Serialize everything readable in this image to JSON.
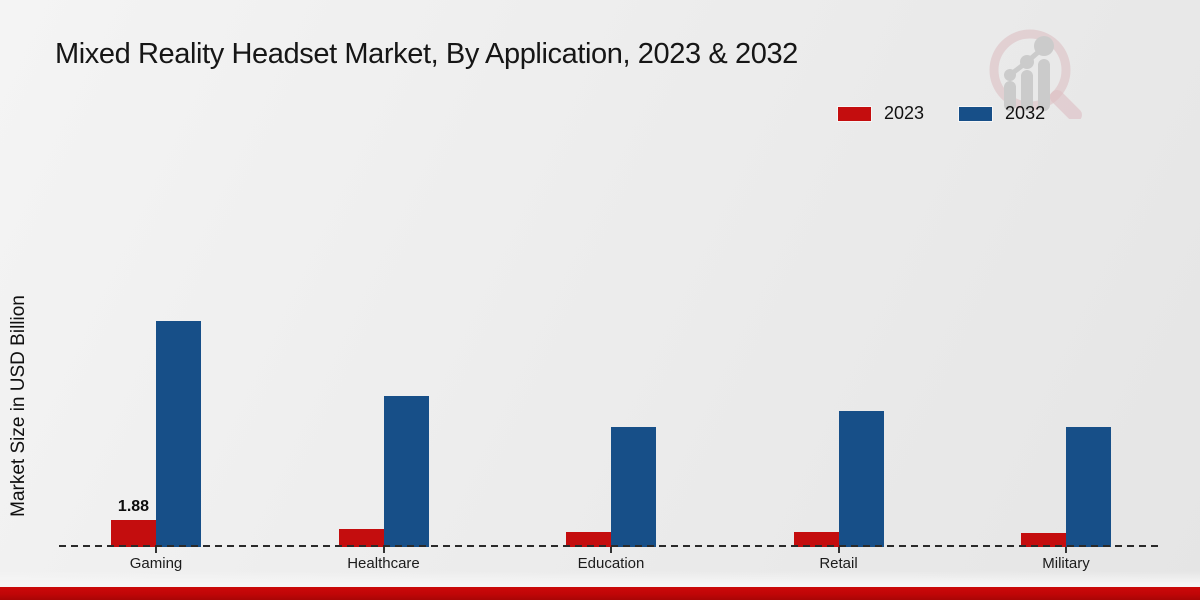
{
  "chart_data": {
    "type": "bar",
    "title": "Mixed Reality Headset Market, By Application, 2023 & 2032",
    "ylabel": "Market Size in USD Billion",
    "xlabel": "",
    "categories": [
      "Gaming",
      "Healthcare",
      "Education",
      "Retail",
      "Military"
    ],
    "series": [
      {
        "name": "2023",
        "color": "#c40d0e",
        "values": [
          1.88,
          1.25,
          1.05,
          1.03,
          0.98
        ]
      },
      {
        "name": "2032",
        "color": "#174f88",
        "values": [
          15.73,
          10.51,
          8.35,
          9.45,
          8.35
        ]
      }
    ],
    "bar_value_labels": [
      {
        "category": "Gaming",
        "series": "2023",
        "text": "1.88"
      }
    ],
    "ylim": [
      0,
      32
    ],
    "grid": "off",
    "legend_position": "top-right",
    "baseline_style": "dashed"
  },
  "branding": {
    "footer_bar_color": "#c00607",
    "logo_ring_color": "#dcb9be",
    "logo_bar_color": "#c6c6c6",
    "logo_name": "market-research-magnifier-logo"
  }
}
